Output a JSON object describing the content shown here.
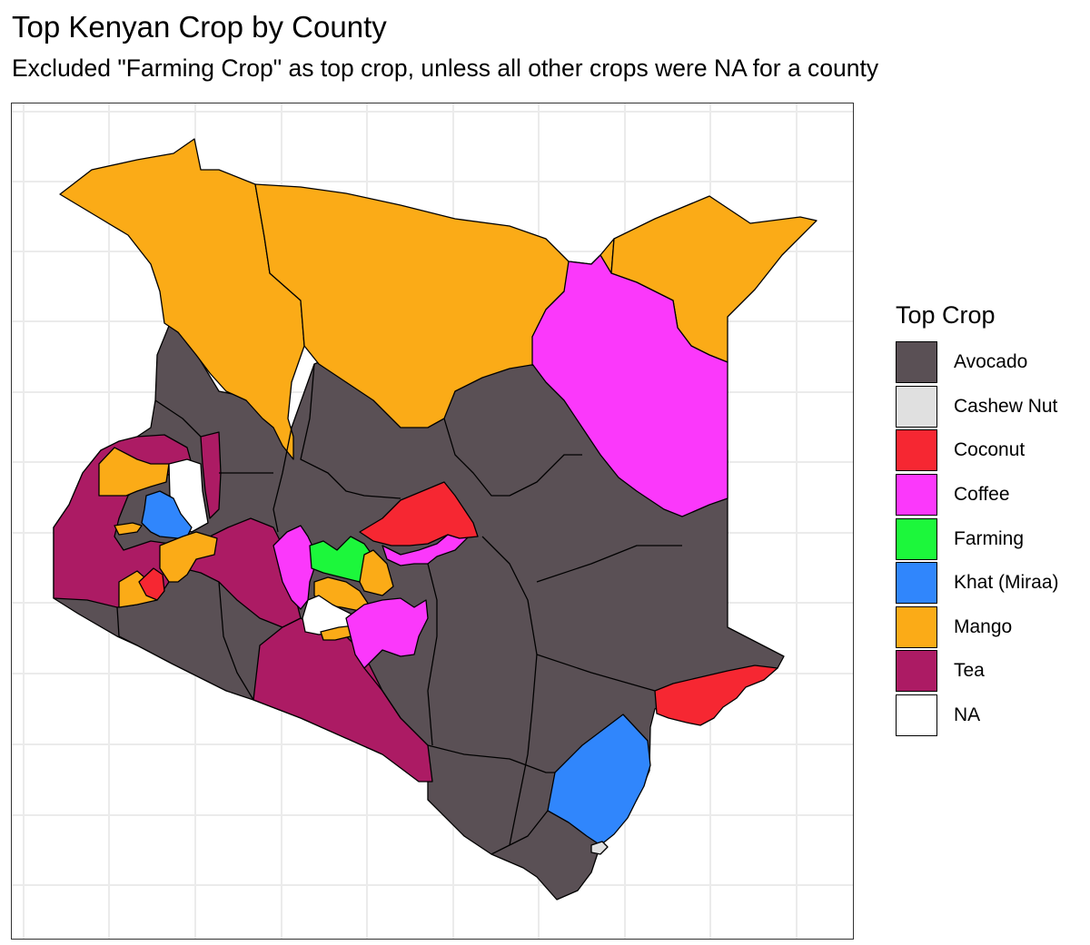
{
  "header": {
    "title": "Top Kenyan Crop by County",
    "subtitle": "Excluded \"Farming Crop\" as top crop, unless all other crops were NA for a county"
  },
  "legend": {
    "title": "Top Crop",
    "items": [
      {
        "label": "Avocado",
        "color": "#5a5055"
      },
      {
        "label": "Cashew Nut",
        "color": "#e0e0e0"
      },
      {
        "label": "Coconut",
        "color": "#f62732"
      },
      {
        "label": "Coffee",
        "color": "#fb38fb"
      },
      {
        "label": "Farming",
        "color": "#1cf73b"
      },
      {
        "label": "Khat (Miraa)",
        "color": "#3086fc"
      },
      {
        "label": "Mango",
        "color": "#fbab17"
      },
      {
        "label": "Tea",
        "color": "#ac1b64"
      },
      {
        "label": "NA",
        "color": "#ffffff"
      }
    ]
  },
  "map": {
    "grid": true,
    "colors": {
      "avocado": "#5a5055",
      "cashew": "#e0e0e0",
      "coconut": "#f62732",
      "coffee": "#fb38fb",
      "farming": "#1cf73b",
      "khat": "#3086fc",
      "mango": "#fbab17",
      "tea": "#ac1b64",
      "na": "#ffffff",
      "grid": "#ebebeb",
      "border": "#000000"
    }
  }
}
